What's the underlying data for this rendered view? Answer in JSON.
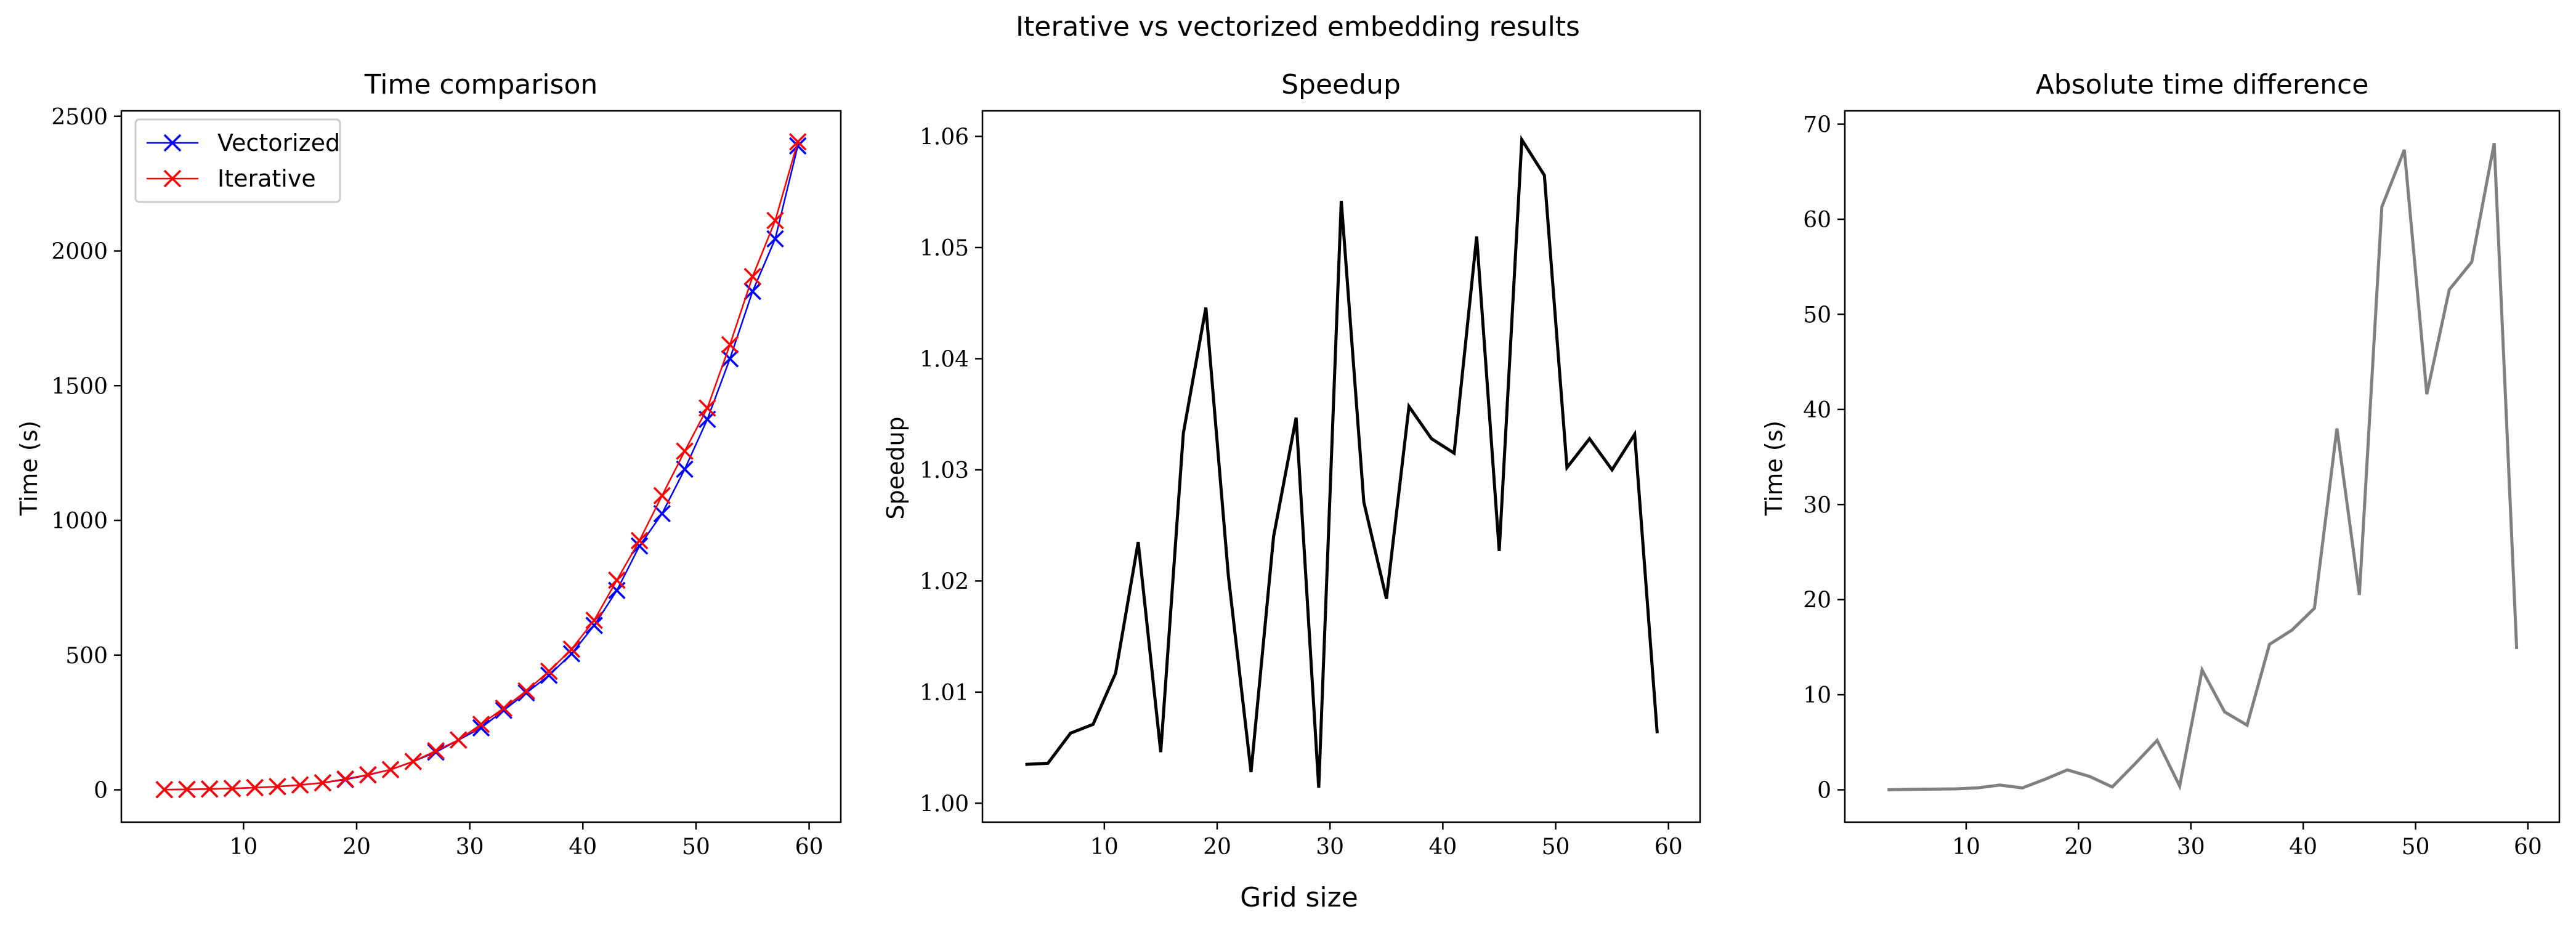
{
  "figure": {
    "suptitle": "Iterative vs vectorized embedding results",
    "xlabel": "Grid size"
  },
  "chart_data": [
    {
      "type": "line",
      "title": "Time comparison",
      "xlabel": "",
      "ylabel": "Time (s)",
      "xlim": [
        -0.8,
        62.8
      ],
      "ylim": [
        -120,
        2520
      ],
      "xticks": [
        10,
        20,
        30,
        40,
        50,
        60
      ],
      "yticks": [
        0,
        500,
        1000,
        1500,
        2000,
        2500
      ],
      "legend": "top-left",
      "grid": false,
      "x": [
        3,
        5,
        7,
        9,
        11,
        13,
        15,
        17,
        19,
        21,
        23,
        25,
        27,
        29,
        31,
        33,
        35,
        37,
        39,
        41,
        43,
        45,
        47,
        49,
        51,
        53,
        55,
        57,
        59
      ],
      "series": [
        {
          "name": "Vectorized",
          "color": "#0000ff",
          "marker": "x",
          "values": [
            0.5,
            1.5,
            3,
            5,
            8,
            12,
            18,
            26,
            38,
            55,
            75,
            105,
            140,
            185,
            230,
            295,
            360,
            425,
            505,
            610,
            740,
            905,
            1025,
            1190,
            1375,
            1600,
            1850,
            2045,
            2390
          ]
        },
        {
          "name": "Iterative",
          "color": "#ff0000",
          "marker": "x",
          "values": [
            0.5,
            1.5,
            3,
            5,
            8,
            12,
            18,
            26,
            40,
            56,
            75,
            105,
            145,
            185,
            243,
            303,
            367,
            440,
            522,
            629,
            778,
            925,
            1092,
            1257,
            1417,
            1652,
            1905,
            2113,
            2405
          ]
        }
      ]
    },
    {
      "type": "line",
      "title": "Speedup",
      "xlabel": "",
      "ylabel": "Speedup",
      "xlim": [
        -0.8,
        62.8
      ],
      "ylim": [
        0.9983,
        1.0623
      ],
      "xticks": [
        10,
        20,
        30,
        40,
        50,
        60
      ],
      "yticks": [
        1.0,
        1.01,
        1.02,
        1.03,
        1.04,
        1.05,
        1.06
      ],
      "ytick_labels": [
        "1.00",
        "1.01",
        "1.02",
        "1.03",
        "1.04",
        "1.05",
        "1.06"
      ],
      "grid": false,
      "x": [
        3,
        5,
        7,
        9,
        11,
        13,
        15,
        17,
        19,
        21,
        23,
        25,
        27,
        29,
        31,
        33,
        35,
        37,
        39,
        41,
        43,
        45,
        47,
        49,
        51,
        53,
        55,
        57,
        59
      ],
      "series": [
        {
          "color": "#000000",
          "values": [
            1.0035,
            1.0036,
            1.0063,
            1.0071,
            1.0117,
            1.0235,
            1.0046,
            1.0333,
            1.0446,
            1.0204,
            1.0028,
            1.024,
            1.0347,
            1.0014,
            1.0542,
            1.0271,
            1.0184,
            1.0357,
            1.0328,
            1.0315,
            1.051,
            1.0227,
            1.0597,
            1.0565,
            1.0302,
            1.0328,
            1.03,
            1.0332,
            1.0063
          ]
        }
      ]
    },
    {
      "type": "line",
      "title": "Absolute time difference",
      "xlabel": "",
      "ylabel": "Time (s)",
      "xlim": [
        -0.8,
        62.8
      ],
      "ylim": [
        -3.4,
        71.4
      ],
      "xticks": [
        10,
        20,
        30,
        40,
        50,
        60
      ],
      "yticks": [
        0,
        10,
        20,
        30,
        40,
        50,
        60,
        70
      ],
      "grid": false,
      "x": [
        3,
        5,
        7,
        9,
        11,
        13,
        15,
        17,
        19,
        21,
        23,
        25,
        27,
        29,
        31,
        33,
        35,
        37,
        39,
        41,
        43,
        45,
        47,
        49,
        51,
        53,
        55,
        57,
        59
      ],
      "series": [
        {
          "color": "#808080",
          "values": [
            0.0,
            0.05,
            0.07,
            0.1,
            0.2,
            0.5,
            0.2,
            1.1,
            2.1,
            1.4,
            0.3,
            2.7,
            5.2,
            0.4,
            12.6,
            8.2,
            6.8,
            15.3,
            16.8,
            19.1,
            38.0,
            20.5,
            61.3,
            67.3,
            41.6,
            52.6,
            55.5,
            68.0,
            14.8
          ]
        }
      ]
    }
  ]
}
